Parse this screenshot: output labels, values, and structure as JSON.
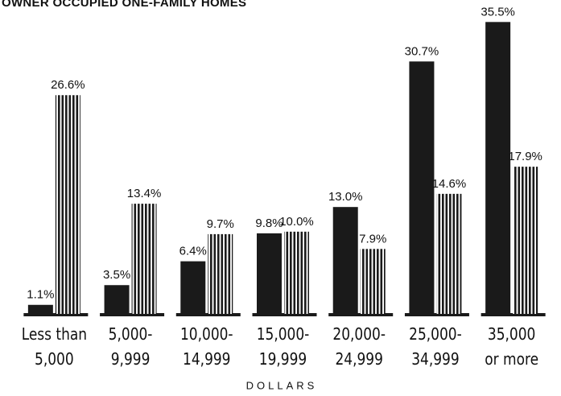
{
  "chart_data": {
    "type": "bar",
    "title": "OWNER OCCUPIED ONE-FAMILY HOMES",
    "x_label": "DOLLARS",
    "categories": [
      [
        "Less than",
        "5,000"
      ],
      [
        "5,000-",
        "9,999"
      ],
      [
        "10,000-",
        "14,999"
      ],
      [
        "15,000-",
        "19,999"
      ],
      [
        "20,000-",
        "24,999"
      ],
      [
        "25,000-",
        "34,999"
      ],
      [
        "35,000",
        "or more"
      ]
    ],
    "series": [
      {
        "color": "#1a1a1a",
        "hatch": "none",
        "values": [
          1.1,
          3.5,
          6.4,
          9.8,
          13.0,
          30.7,
          35.5
        ],
        "value_labels": [
          "1.1%",
          "3.5%",
          "6.4%",
          "9.8%",
          "13.0%",
          "30.7%",
          "35.5%"
        ]
      },
      {
        "color": "#1a1a1a",
        "hatch": "vertical",
        "values": [
          26.6,
          13.4,
          9.7,
          10.0,
          7.9,
          14.6,
          17.9
        ],
        "value_labels": [
          "26.6%",
          "13.4%",
          "9.7%",
          "10.0%",
          "7.9%",
          "14.6%",
          "17.9%"
        ]
      }
    ],
    "ylim": [
      0,
      37
    ]
  }
}
